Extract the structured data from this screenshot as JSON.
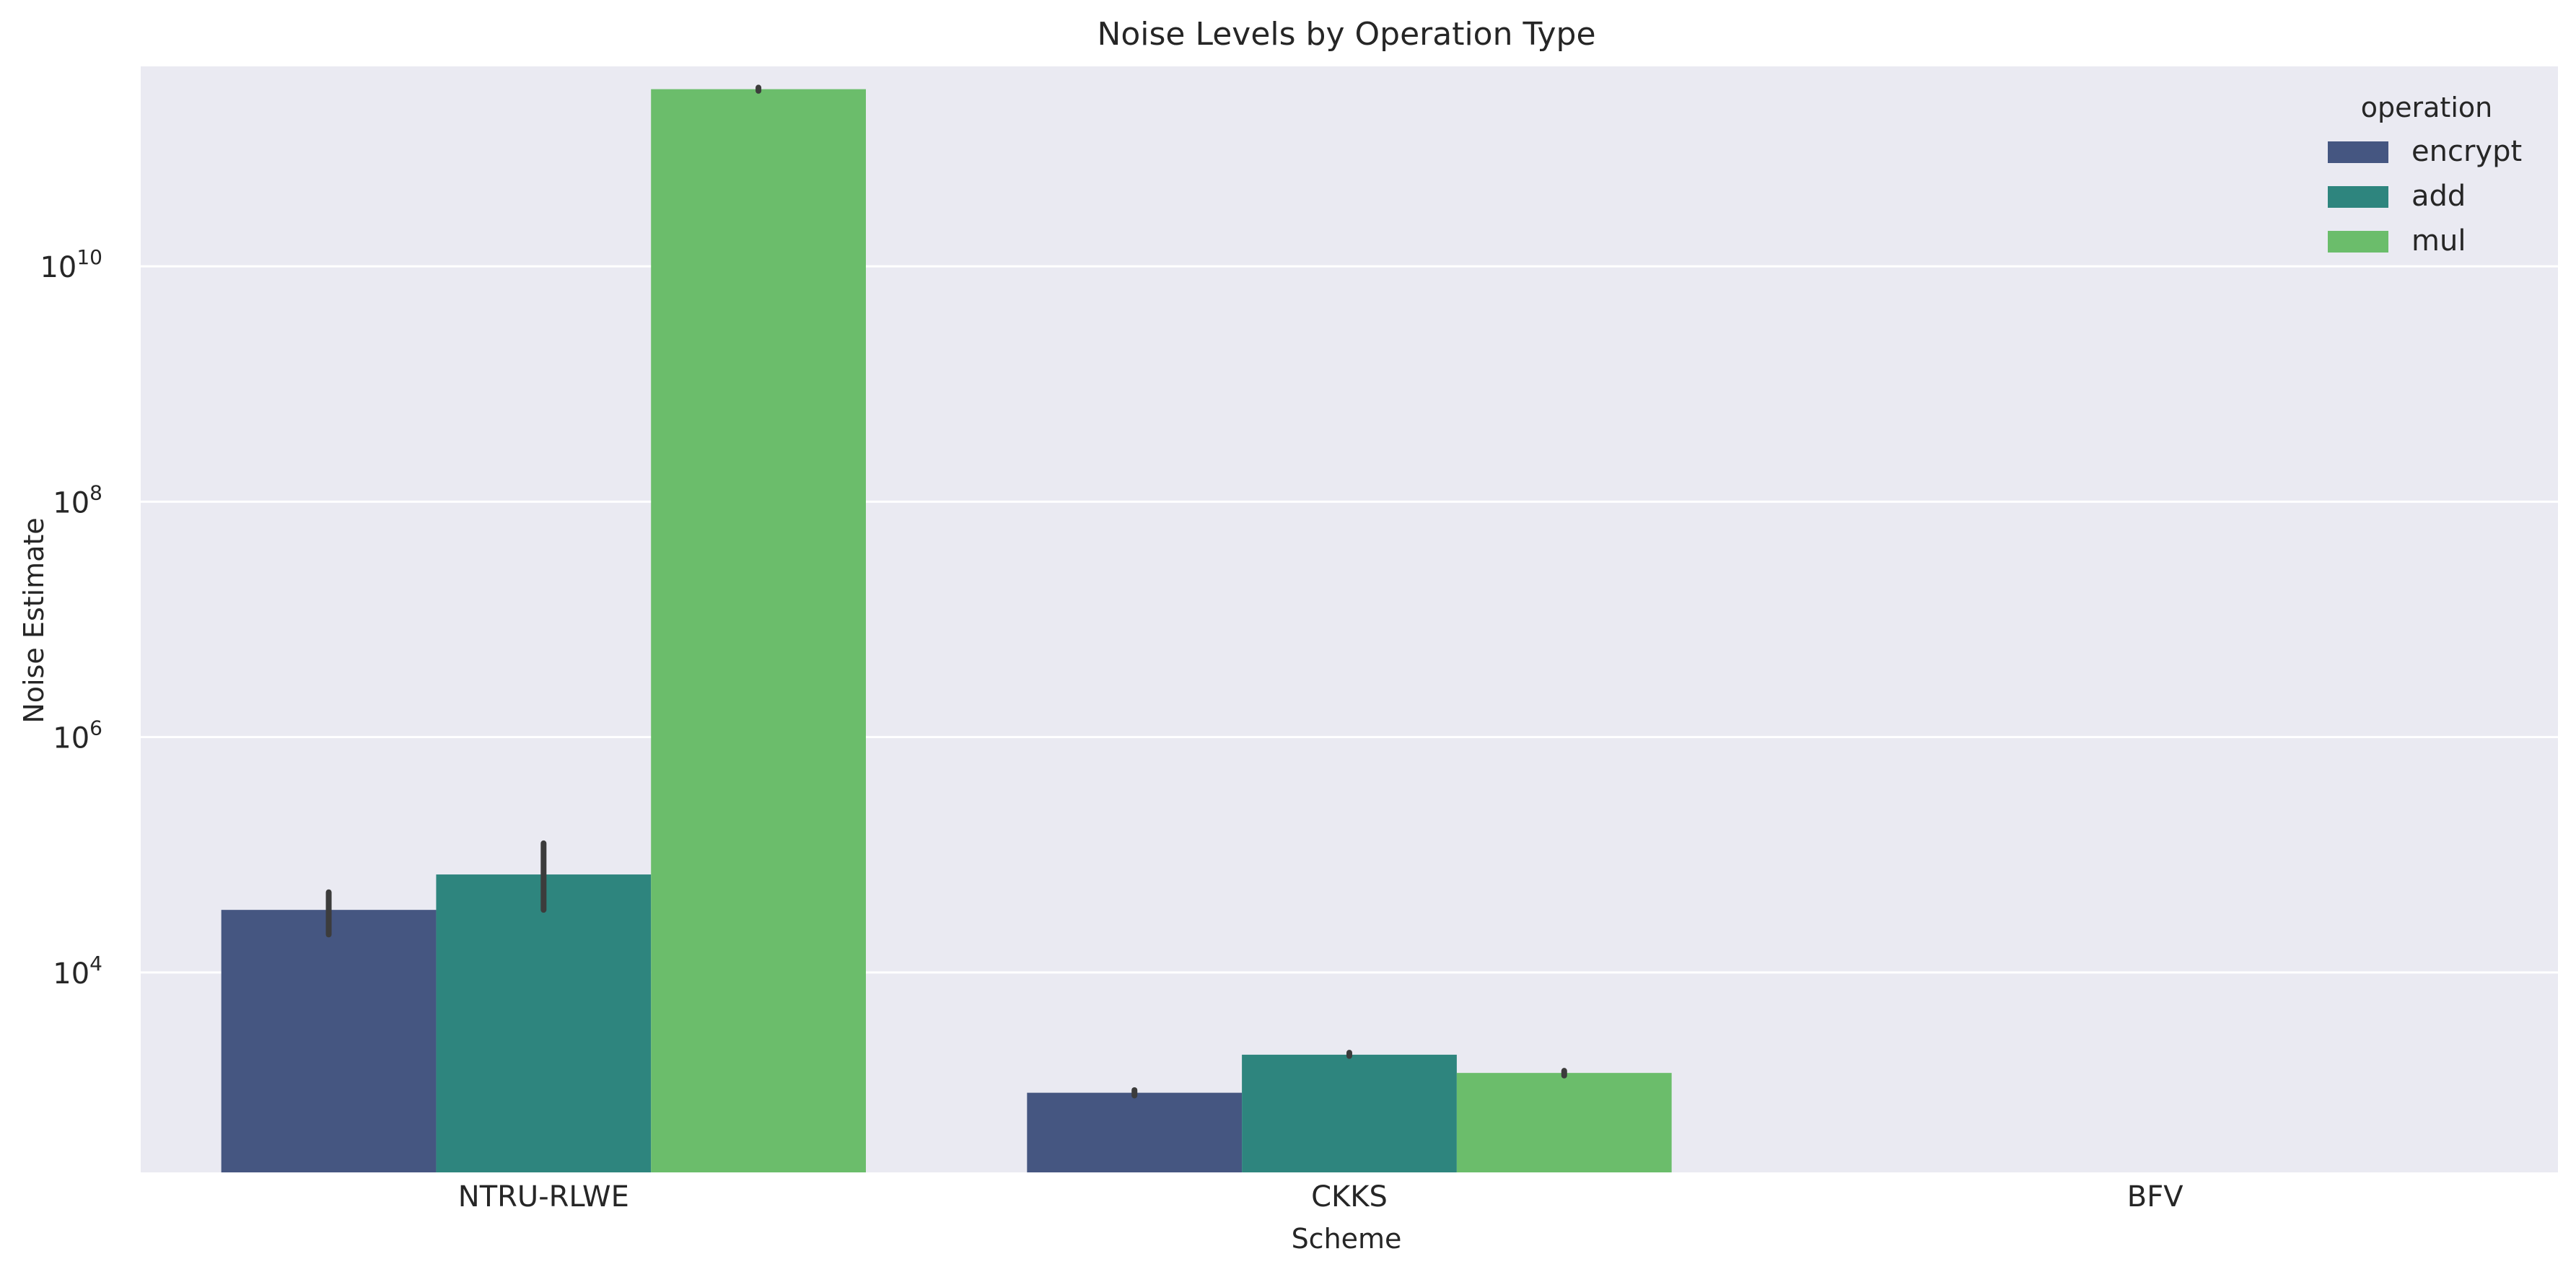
{
  "colors": {
    "plot_background": "#eaeaf2",
    "grid": "#ffffff",
    "encrypt": "#455681",
    "add": "#2e857e",
    "mul": "#6bbd6b",
    "error_bar": "#3c3c3c",
    "text": "#262626"
  },
  "chart_data": {
    "type": "bar",
    "title": "Noise Levels by Operation Type",
    "xlabel": "Scheme",
    "ylabel": "Noise Estimate",
    "yscale": "log",
    "ylim": [
      200,
      500000000000
    ],
    "categories": [
      "NTRU-RLWE",
      "CKKS",
      "BFV"
    ],
    "yticks": [
      {
        "value": 10000,
        "base": "10",
        "exp": "4"
      },
      {
        "value": 1000000,
        "base": "10",
        "exp": "6"
      },
      {
        "value": 100000000,
        "base": "10",
        "exp": "8"
      },
      {
        "value": 10000000000,
        "base": "10",
        "exp": "10"
      }
    ],
    "grid": true,
    "legend": {
      "title": "operation",
      "position": "top-right"
    },
    "series": [
      {
        "name": "encrypt",
        "color": "#455681",
        "values": [
          34000,
          950,
          null
        ],
        "err_low": [
          21000,
          900,
          null
        ],
        "err_high": [
          48000,
          1000,
          null
        ]
      },
      {
        "name": "add",
        "color": "#2e857e",
        "values": [
          68000,
          2000,
          null
        ],
        "err_low": [
          34000,
          1950,
          null
        ],
        "err_high": [
          125000,
          2080,
          null
        ]
      },
      {
        "name": "mul",
        "color": "#6bbd6b",
        "values": [
          320000000000,
          1400,
          null
        ],
        "err_low": [
          310000000000,
          1330,
          null
        ],
        "err_high": [
          330000000000,
          1460,
          null
        ]
      }
    ]
  }
}
